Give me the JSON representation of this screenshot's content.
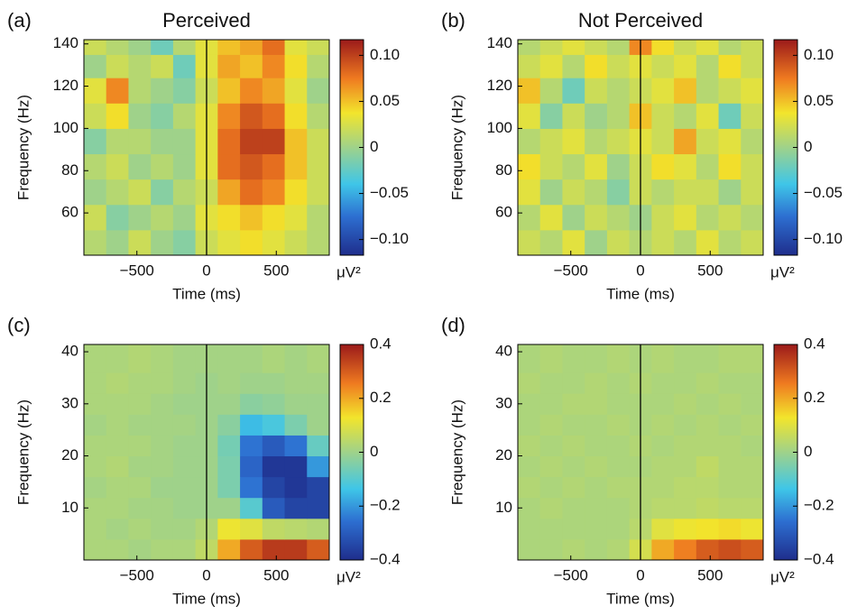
{
  "chart_data": [
    {
      "type": "heatmap",
      "panel_label": "(a)",
      "title": "Perceived",
      "x_label": "Time (ms)",
      "y_label": "Frequency (Hz)",
      "colorbar_label": "μV²",
      "xlim": [
        -880,
        880
      ],
      "ylim": [
        40,
        142
      ],
      "clim": [
        -0.117,
        0.117
      ],
      "vline": 0,
      "xticks": [
        {
          "value": -500,
          "label": "−500"
        },
        0,
        500
      ],
      "yticks": [
        60,
        80,
        100,
        120,
        140
      ],
      "cticks": [
        {
          "value": 0.1,
          "label": "0.10"
        },
        0.05,
        0,
        {
          "value": -0.05,
          "label": "−0.05"
        },
        {
          "value": -0.1,
          "label": "−0.10"
        }
      ],
      "x": [
        -800,
        -640,
        -480,
        -320,
        -160,
        0,
        160,
        320,
        480,
        640,
        800
      ],
      "y": [
        46,
        58,
        70,
        82,
        94,
        106,
        118,
        130,
        140
      ],
      "z": [
        [
          0.01,
          0,
          0.02,
          0,
          -0.01,
          0.02,
          0.03,
          0.04,
          0.03,
          0.02,
          0.01
        ],
        [
          0.02,
          -0.01,
          0,
          0.01,
          0,
          0.03,
          0.04,
          0.05,
          0.04,
          0.03,
          0.01
        ],
        [
          0,
          0.01,
          0.02,
          -0.01,
          0.01,
          0.02,
          0.06,
          0.08,
          0.07,
          0.04,
          0.02
        ],
        [
          0.01,
          0.02,
          0,
          0.01,
          0,
          0.03,
          0.08,
          0.09,
          0.08,
          0.05,
          0.02
        ],
        [
          -0.01,
          0.01,
          0.01,
          0,
          0,
          0.03,
          0.08,
          0.1,
          0.1,
          0.05,
          0.02
        ],
        [
          0.02,
          0.04,
          0,
          -0.01,
          0.01,
          0.03,
          0.07,
          0.09,
          0.08,
          0.04,
          0.01
        ],
        [
          0.03,
          0.07,
          0.01,
          0,
          -0.01,
          0.02,
          0.05,
          0.07,
          0.06,
          0.03,
          0
        ],
        [
          0,
          0.02,
          0.01,
          0.02,
          -0.02,
          0.03,
          0.06,
          0.05,
          0.07,
          0.04,
          0.01
        ],
        [
          0.02,
          0.01,
          0,
          -0.02,
          0.01,
          0.03,
          0.05,
          0.06,
          0.08,
          0.03,
          0.02
        ]
      ]
    },
    {
      "type": "heatmap",
      "panel_label": "(b)",
      "title": "Not Perceived",
      "x_label": "Time (ms)",
      "y_label": "Frequency (Hz)",
      "colorbar_label": "μV²",
      "xlim": [
        -880,
        880
      ],
      "ylim": [
        40,
        142
      ],
      "clim": [
        -0.117,
        0.117
      ],
      "vline": 0,
      "xticks": [
        {
          "value": -500,
          "label": "−500"
        },
        0,
        500
      ],
      "yticks": [
        60,
        80,
        100,
        120,
        140
      ],
      "cticks": [
        {
          "value": 0.1,
          "label": "0.10"
        },
        0.05,
        0,
        {
          "value": -0.05,
          "label": "−0.05"
        },
        {
          "value": -0.1,
          "label": "−0.10"
        }
      ],
      "x": [
        -800,
        -640,
        -480,
        -320,
        -160,
        0,
        160,
        320,
        480,
        640,
        800
      ],
      "y": [
        46,
        58,
        70,
        82,
        94,
        106,
        118,
        130,
        140
      ],
      "z": [
        [
          0.02,
          0.01,
          0.03,
          0,
          0.02,
          0.01,
          0.02,
          0.01,
          0.03,
          0.01,
          0.02
        ],
        [
          0.01,
          0.03,
          0,
          0.02,
          0.01,
          0,
          0.02,
          0.03,
          0.01,
          0.02,
          0.01
        ],
        [
          0.03,
          0,
          0.02,
          0.01,
          -0.01,
          0.02,
          0.01,
          0.02,
          0.02,
          0,
          0.02
        ],
        [
          0.04,
          0.02,
          0.01,
          0.03,
          0,
          0.02,
          0.04,
          0.03,
          0.01,
          0.04,
          0.02
        ],
        [
          0.01,
          0.02,
          0.03,
          0.01,
          0.02,
          0.03,
          0.02,
          0.06,
          0.02,
          0.03,
          0.01
        ],
        [
          0.03,
          -0.01,
          0.02,
          0,
          0.01,
          0.05,
          0.02,
          0.01,
          0.03,
          -0.02,
          0.02
        ],
        [
          0.05,
          0.01,
          -0.02,
          0.02,
          0.01,
          0.02,
          0.03,
          0.05,
          0.01,
          0.02,
          0.03
        ],
        [
          0.02,
          0.03,
          0.01,
          0.04,
          0.02,
          0.03,
          0.02,
          0.03,
          0.01,
          0.04,
          0.02
        ],
        [
          0.01,
          0.02,
          0.03,
          0.02,
          0.01,
          0.07,
          0.04,
          0.02,
          0.03,
          0.01,
          0.02
        ]
      ]
    },
    {
      "type": "heatmap",
      "panel_label": "(c)",
      "x_label": "Time (ms)",
      "y_label": "Frequency (Hz)",
      "colorbar_label": "μV²",
      "xlim": [
        -880,
        880
      ],
      "ylim": [
        0,
        41.4
      ],
      "clim": [
        -0.4,
        0.4
      ],
      "vline": 0,
      "xticks": [
        {
          "value": -500,
          "label": "−500"
        },
        0,
        500
      ],
      "yticks": [
        10,
        20,
        30,
        40
      ],
      "cticks": [
        0.4,
        0.2,
        0,
        {
          "value": -0.2,
          "label": "−0.2"
        },
        {
          "value": -0.4,
          "label": "−0.4"
        }
      ],
      "x": [
        -800,
        -640,
        -480,
        -320,
        -160,
        0,
        160,
        320,
        480,
        640,
        800
      ],
      "y": [
        2,
        6,
        10,
        14,
        18,
        22,
        26,
        30,
        34,
        38
      ],
      "z": [
        [
          0.02,
          0.02,
          0.01,
          0.02,
          0.02,
          0.05,
          0.2,
          0.3,
          0.35,
          0.35,
          0.3
        ],
        [
          0.02,
          0.01,
          0.02,
          0.01,
          0.01,
          0.03,
          0.12,
          0.1,
          0.05,
          0.04,
          0.03
        ],
        [
          0.02,
          0.02,
          0.01,
          0.01,
          0,
          0,
          0,
          -0.1,
          -0.3,
          -0.35,
          -0.35
        ],
        [
          0.01,
          0.02,
          0.02,
          0,
          0,
          0,
          -0.05,
          -0.25,
          -0.35,
          -0.38,
          -0.35
        ],
        [
          0.02,
          0.03,
          0.01,
          0.01,
          0,
          0,
          -0.05,
          -0.28,
          -0.38,
          -0.38,
          -0.2
        ],
        [
          0.02,
          0.02,
          0.02,
          0.01,
          0,
          0,
          -0.06,
          -0.25,
          -0.3,
          -0.25,
          -0.08
        ],
        [
          0.01,
          0.02,
          0.01,
          0.01,
          0.01,
          0,
          -0.03,
          -0.15,
          -0.12,
          -0.05,
          0
        ],
        [
          0.02,
          0.02,
          0.02,
          0.01,
          0,
          0,
          0,
          -0.03,
          -0.02,
          0,
          0
        ],
        [
          0.02,
          0.03,
          0.02,
          0.02,
          0.01,
          0,
          0.01,
          0,
          0,
          0.01,
          0.01
        ],
        [
          0.02,
          0.02,
          0.03,
          0.02,
          0.01,
          0.01,
          0.01,
          0.01,
          0.02,
          0.01,
          0.02
        ]
      ]
    },
    {
      "type": "heatmap",
      "panel_label": "(d)",
      "x_label": "Time (ms)",
      "y_label": "Frequency (Hz)",
      "colorbar_label": "μV²",
      "xlim": [
        -880,
        880
      ],
      "ylim": [
        0,
        41.4
      ],
      "clim": [
        -0.4,
        0.4
      ],
      "vline": 0,
      "xticks": [
        {
          "value": -500,
          "label": "−500"
        },
        0,
        500
      ],
      "yticks": [
        10,
        20,
        30,
        40
      ],
      "cticks": [
        0.4,
        0.2,
        0,
        {
          "value": -0.2,
          "label": "−0.2"
        },
        {
          "value": -0.4,
          "label": "−0.4"
        }
      ],
      "x": [
        -800,
        -640,
        -480,
        -320,
        -160,
        0,
        160,
        320,
        480,
        640,
        800
      ],
      "y": [
        2,
        6,
        10,
        14,
        18,
        22,
        26,
        30,
        34,
        38
      ],
      "z": [
        [
          0.02,
          0.02,
          0.03,
          0.02,
          0.03,
          0.08,
          0.2,
          0.25,
          0.3,
          0.32,
          0.3
        ],
        [
          0.02,
          0.02,
          0.02,
          0.02,
          0.02,
          0.04,
          0.1,
          0.12,
          0.13,
          0.14,
          0.12
        ],
        [
          0.02,
          0.03,
          0.02,
          0.02,
          0.02,
          0.03,
          0.04,
          0.04,
          0.05,
          0.04,
          0.04
        ],
        [
          0.03,
          0.02,
          0.03,
          0.02,
          0.03,
          0.03,
          0.03,
          0.04,
          0.04,
          0.03,
          0.03
        ],
        [
          0.02,
          0.03,
          0.02,
          0.03,
          0.02,
          0.02,
          0.03,
          0.03,
          0.05,
          0.03,
          0.03
        ],
        [
          0.03,
          0.02,
          0.03,
          0.02,
          0.02,
          0.03,
          0.02,
          0.03,
          0.03,
          0.03,
          0.02
        ],
        [
          0.02,
          0.03,
          0.02,
          0.02,
          0.03,
          0.02,
          0.03,
          0.02,
          0.03,
          0.02,
          0.03
        ],
        [
          0.02,
          0.02,
          0.03,
          0.03,
          0.02,
          0.02,
          0.02,
          0.03,
          0.02,
          0.03,
          0.02
        ],
        [
          0.03,
          0.02,
          0.02,
          0.03,
          0.02,
          0.03,
          0.02,
          0.02,
          0.03,
          0.02,
          0.02
        ],
        [
          0.02,
          0.03,
          0.02,
          0.02,
          0.03,
          0.02,
          0.03,
          0.02,
          0.02,
          0.03,
          0.03
        ]
      ]
    }
  ]
}
